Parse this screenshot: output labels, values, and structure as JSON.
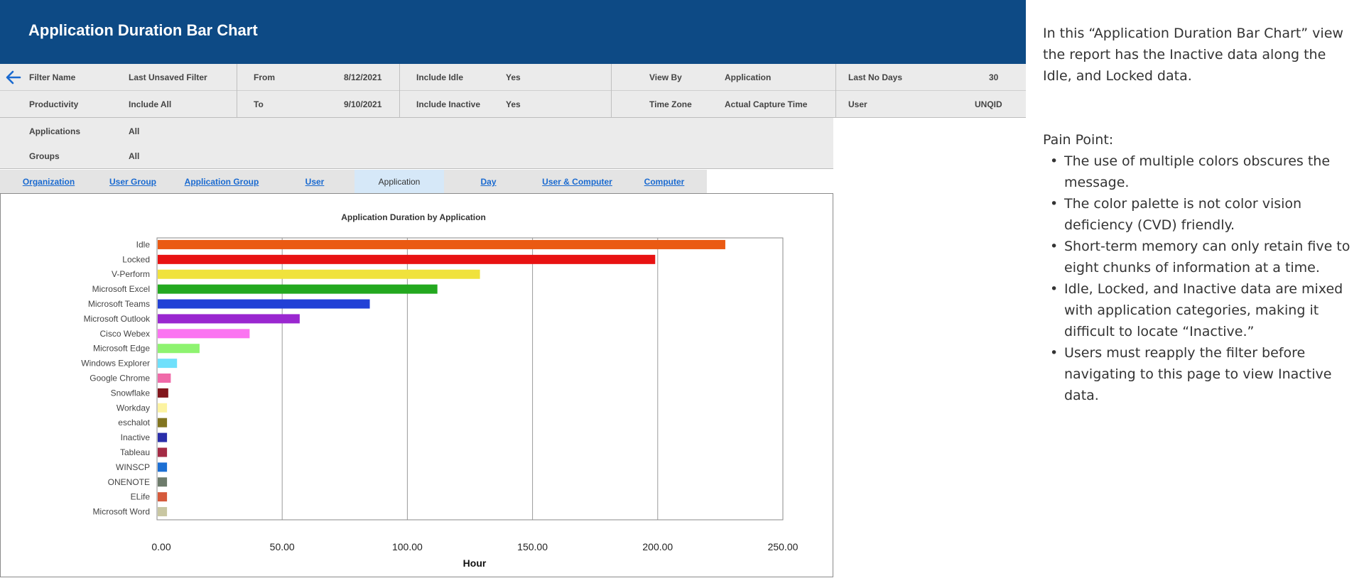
{
  "header": {
    "title": "Application Duration Bar Chart"
  },
  "filters": {
    "row1": {
      "filter_name_label": "Filter Name",
      "filter_name_value": "Last Unsaved Filter",
      "from_label": "From",
      "from_value": "8/12/2021",
      "include_idle_label": "Include Idle",
      "include_idle_value": "Yes",
      "view_by_label": "View By",
      "view_by_value": "Application",
      "last_no_days_label": "Last No Days",
      "last_no_days_value": "30"
    },
    "row2": {
      "productivity_label": "Productivity",
      "productivity_value": "Include All",
      "to_label": "To",
      "to_value": "9/10/2021",
      "include_inactive_label": "Include Inactive",
      "include_inactive_value": "Yes",
      "time_zone_label": "Time Zone",
      "time_zone_value": "Actual Capture Time",
      "user_label": "User",
      "user_value": "UNQID"
    },
    "row3": {
      "applications_label": "Applications",
      "applications_value": "All"
    },
    "row4": {
      "groups_label": "Groups",
      "groups_value": "All"
    }
  },
  "tabs": [
    {
      "label": "Organization",
      "active": false
    },
    {
      "label": "User Group",
      "active": false
    },
    {
      "label": "Application Group",
      "active": false
    },
    {
      "label": "User",
      "active": false
    },
    {
      "label": "Application",
      "active": true
    },
    {
      "label": "Day",
      "active": false
    },
    {
      "label": "User & Computer",
      "active": false
    },
    {
      "label": "Computer",
      "active": false
    }
  ],
  "chart_data": {
    "type": "bar",
    "orientation": "horizontal",
    "title": "Application Duration by Application",
    "xlabel": "Hour",
    "ylabel": "",
    "xlim": [
      0,
      250
    ],
    "xticks": [
      "0.00",
      "50.00",
      "100.00",
      "150.00",
      "200.00",
      "250.00"
    ],
    "grid": true,
    "categories": [
      "Idle",
      "Locked",
      "V-Perform",
      "Microsoft Excel",
      "Microsoft Teams",
      "Microsoft Outlook",
      "Cisco Webex",
      "Microsoft Edge",
      "Windows Explorer",
      "Google Chrome",
      "Snowflake",
      "Workday",
      "eschalot",
      "Inactive",
      "Tableau",
      "WINSCP",
      "ONENOTE",
      "ELife",
      "Microsoft Word"
    ],
    "values": [
      227,
      199,
      129,
      112,
      85,
      57,
      37,
      17,
      8,
      5.5,
      4.5,
      4,
      4,
      4,
      4,
      4,
      4,
      4,
      4
    ],
    "colors": [
      "#ea5a13",
      "#e81212",
      "#f0e23c",
      "#23a81f",
      "#2241d6",
      "#9a27d0",
      "#fb74f1",
      "#8ef370",
      "#6fe0fb",
      "#f06aa9",
      "#82161c",
      "#fcf3a1",
      "#827520",
      "#2a2eaa",
      "#a42b45",
      "#1c6fd3",
      "#6d7b6b",
      "#d55a3b",
      "#c9c7a2"
    ]
  },
  "notes": {
    "intro": "In this “Application Duration Bar Chart” view the report has the Inactive data along the Idle, and Locked data.",
    "pain_title": "Pain Point:",
    "bullets": [
      "The use of multiple colors obscures the message.",
      "The color palette is not color vision deficiency (CVD) friendly.",
      "Short-term memory can only retain five to eight chunks of information at a time.",
      "Idle, Locked, and Inactive data are mixed with application categories, making it difficult to locate “Inactive.”",
      "Users must reapply the filter before navigating to this page to view Inactive data."
    ]
  }
}
